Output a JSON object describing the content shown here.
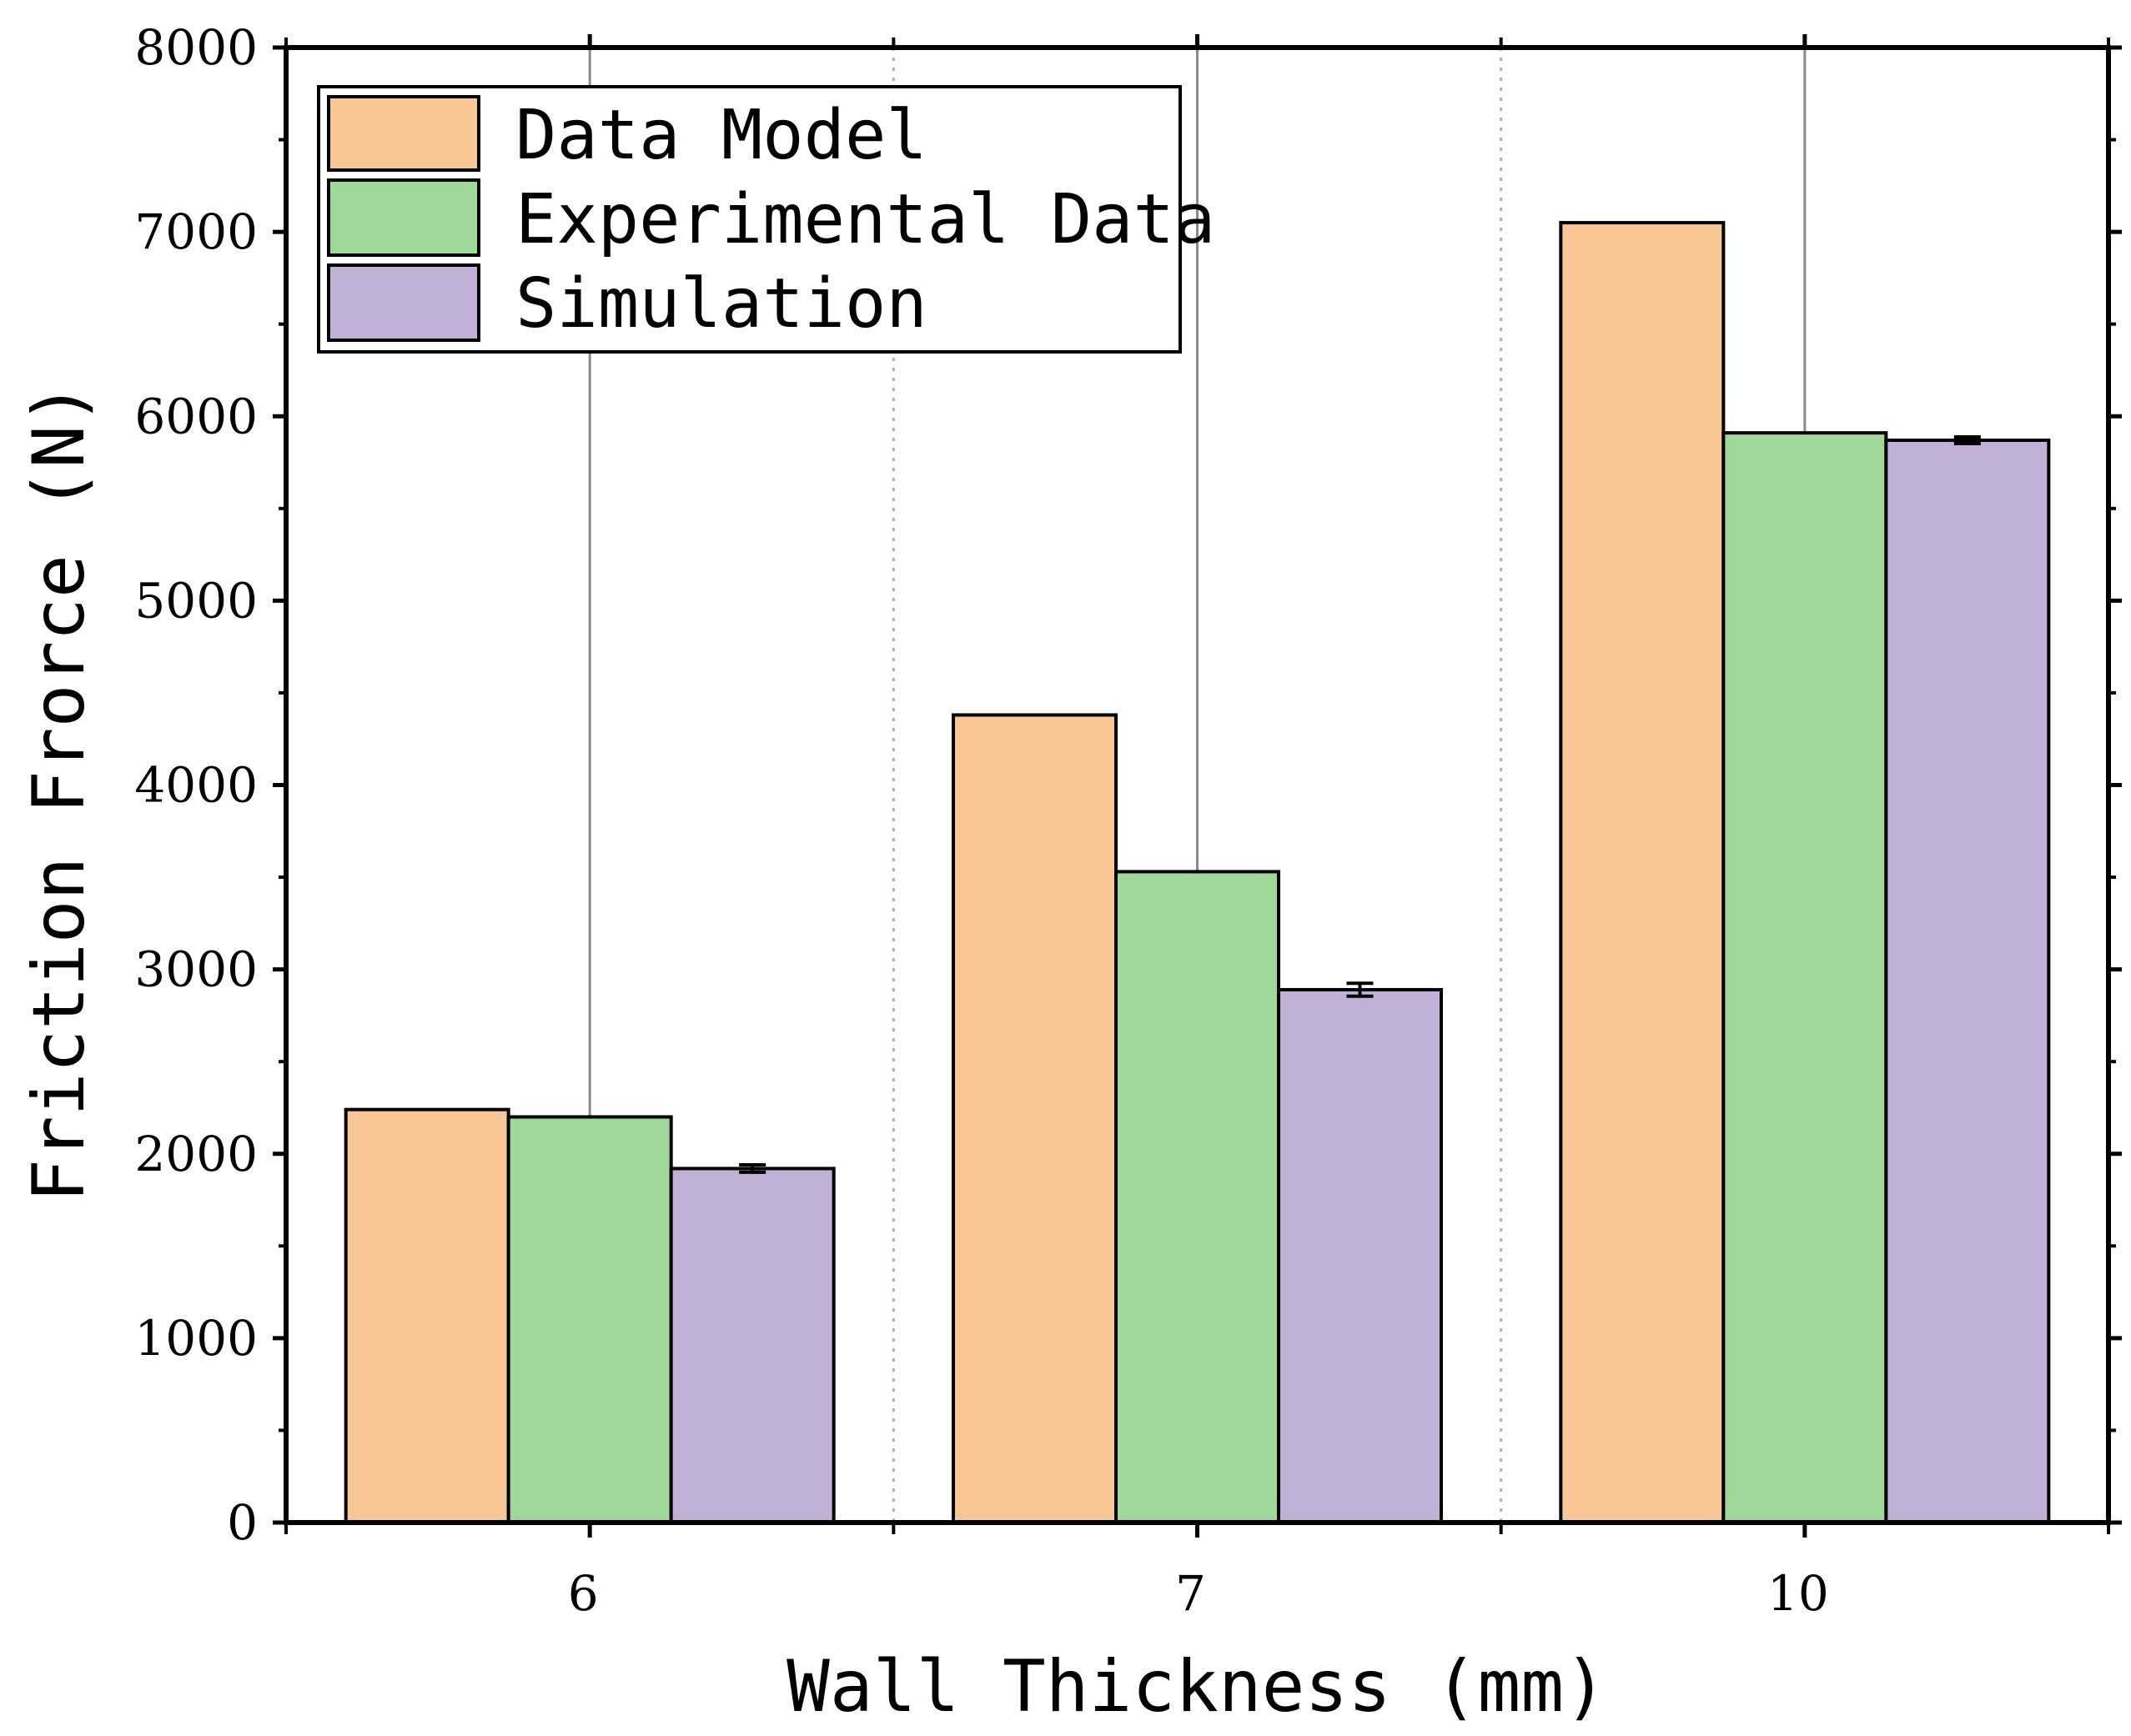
{
  "chart_data": {
    "type": "bar",
    "title": "",
    "xlabel": "Wall Thickness (mm)",
    "ylabel": "Friction Frorce (N)",
    "categories": [
      "6",
      "7",
      "10"
    ],
    "ylim": [
      0,
      8000
    ],
    "yticks": [
      0,
      1000,
      2000,
      3000,
      4000,
      5000,
      6000,
      7000,
      8000
    ],
    "yticks_labels": [
      "0",
      "1000",
      "2000",
      "3000",
      "4000",
      "5000",
      "6000",
      "7000",
      "8000"
    ],
    "legend_position": "top-left",
    "series": [
      {
        "name": "Data Model",
        "color": "#F9C794",
        "values": [
          2240,
          4380,
          7050
        ]
      },
      {
        "name": "Experimental Data",
        "color": "#A0D89A",
        "values": [
          2200,
          3530,
          5910
        ]
      },
      {
        "name": "Simulation",
        "color": "#C2B1D6",
        "values": [
          1920,
          2890,
          5870
        ],
        "errors": [
          20,
          35,
          18
        ]
      }
    ]
  }
}
